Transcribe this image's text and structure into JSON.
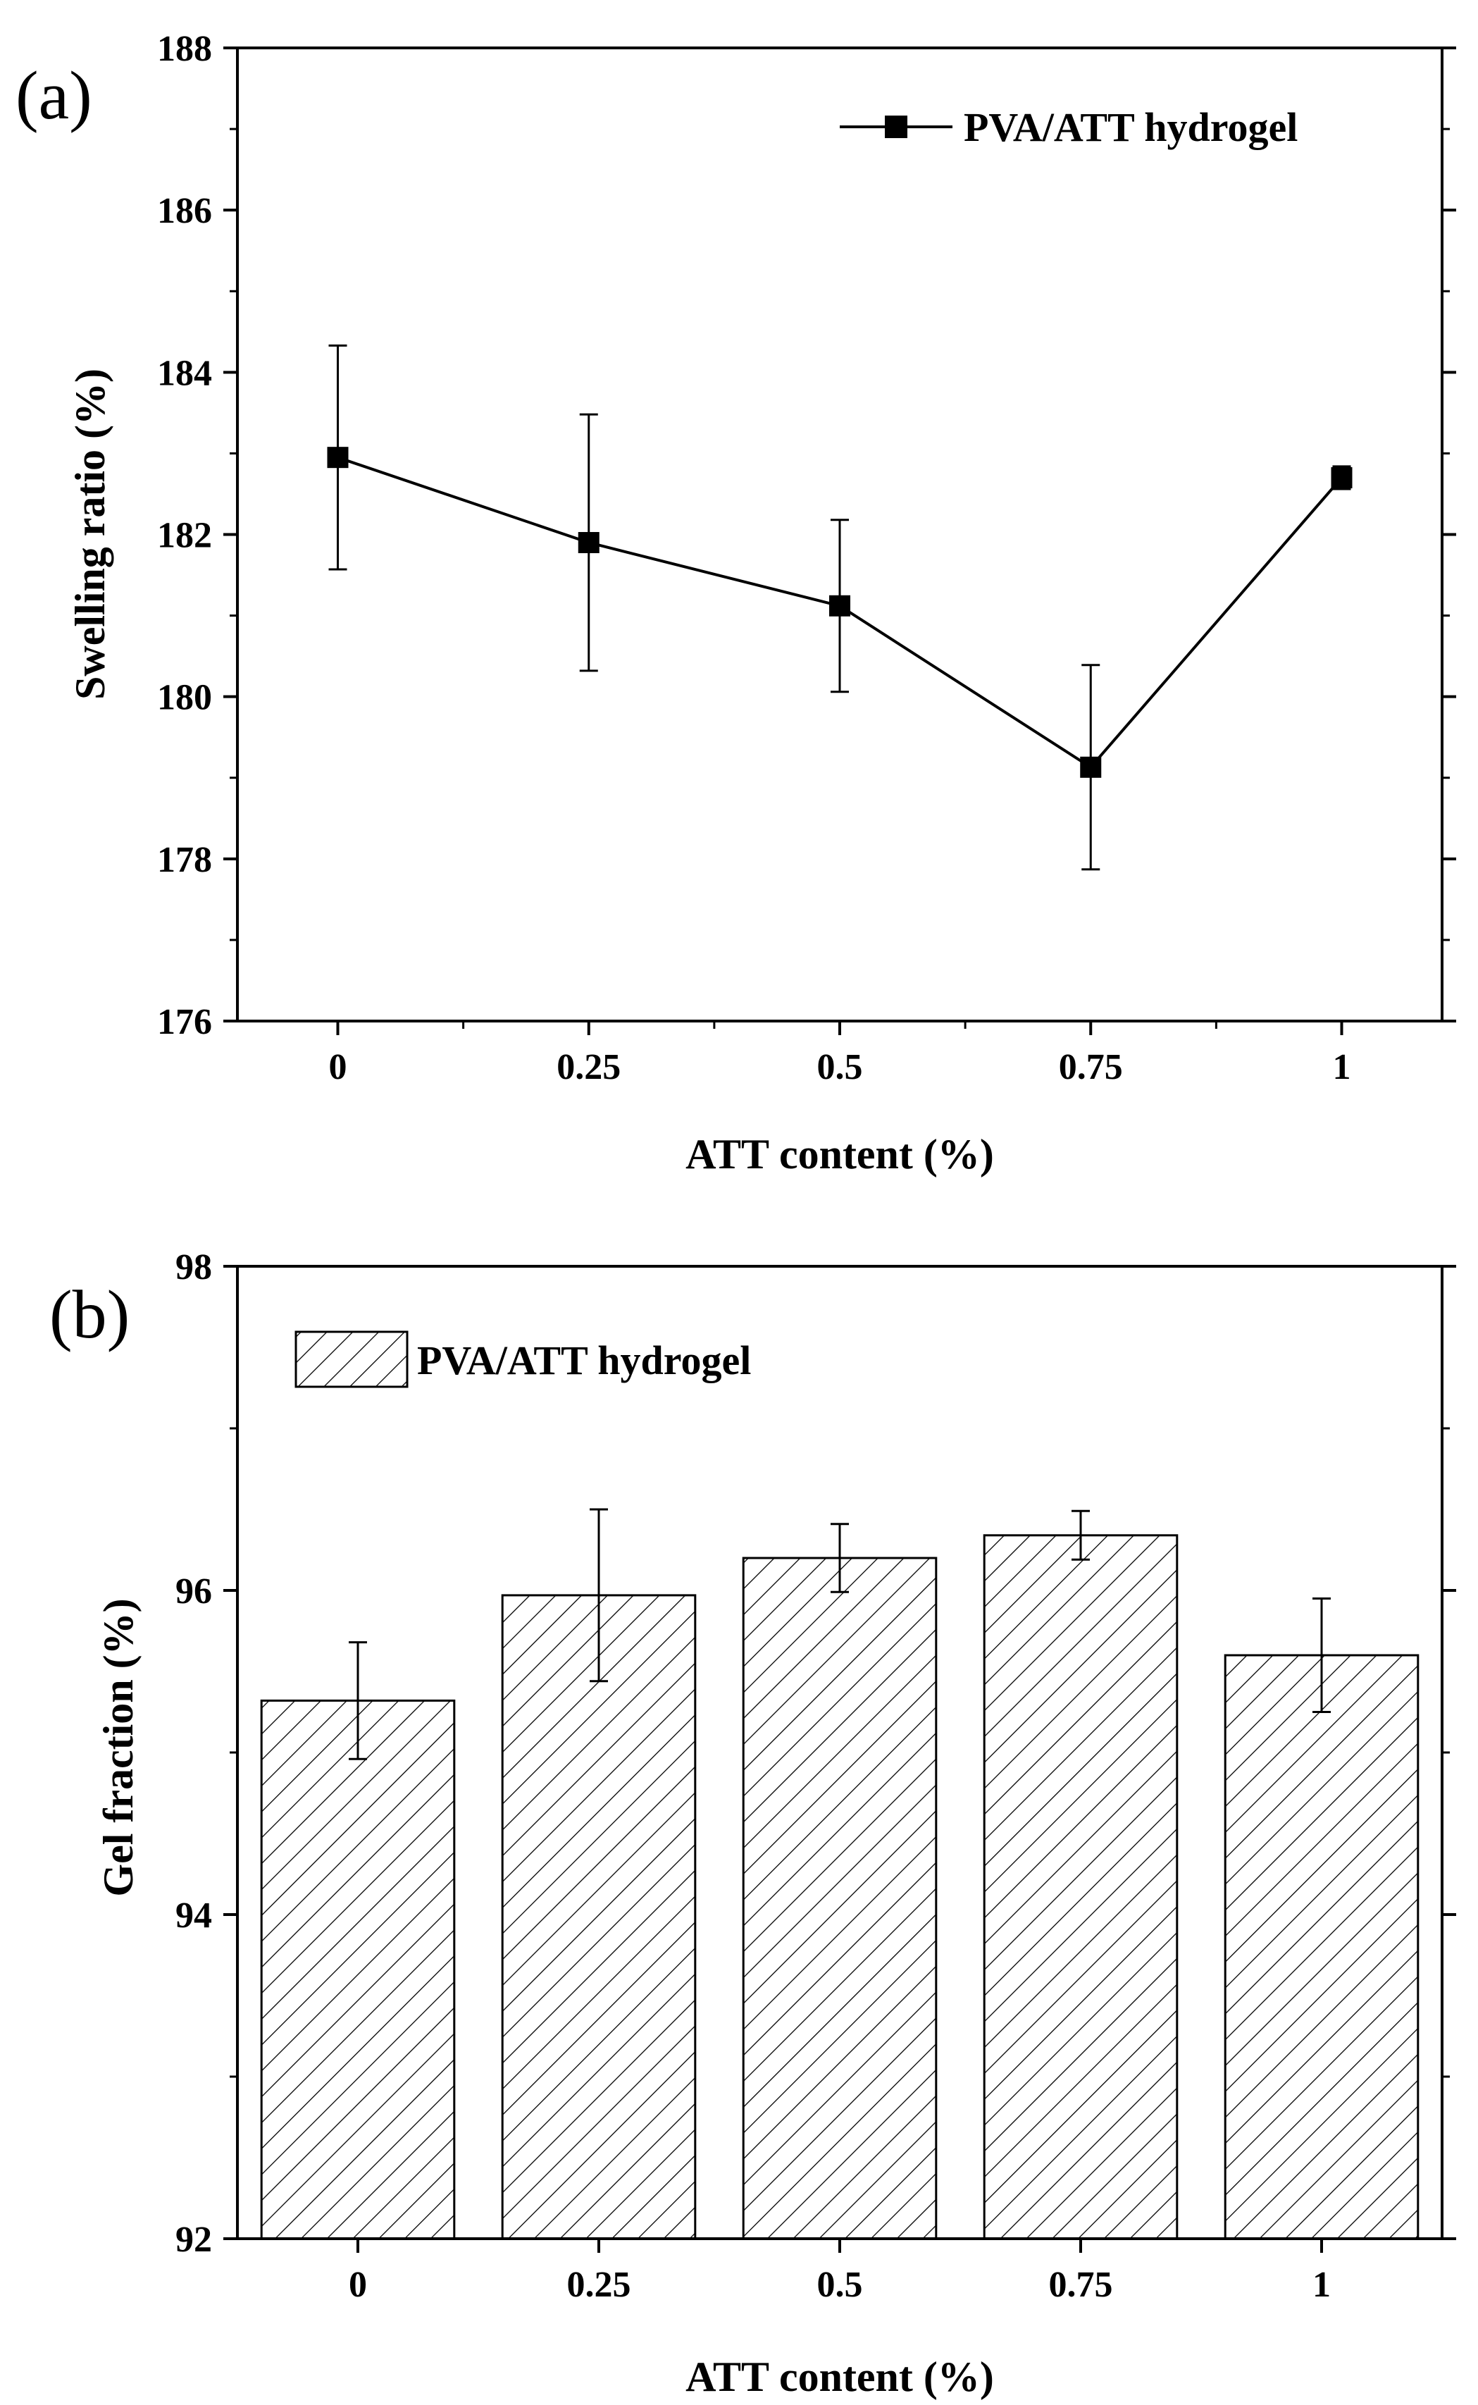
{
  "chart_data": [
    {
      "panel": "(a)",
      "type": "line",
      "title": "",
      "xlabel": "ATT content (%)",
      "ylabel": "Swelling ratio (%)",
      "categories": [
        "0",
        "0.25",
        "0.5",
        "0.75",
        "1"
      ],
      "x": [
        0,
        0.25,
        0.5,
        0.75,
        1
      ],
      "xlim": [
        -0.1,
        1.1
      ],
      "ylim": [
        176,
        188
      ],
      "yticks": [
        176,
        178,
        180,
        182,
        184,
        186,
        188
      ],
      "yticklabels": [
        "176",
        "178",
        "180",
        "182",
        "184",
        "186",
        "188"
      ],
      "series": [
        {
          "name": "PVA/ATT hydrogel",
          "values": [
            182.95,
            181.9,
            181.12,
            179.13,
            182.7
          ],
          "error": [
            1.38,
            1.58,
            1.06,
            1.26,
            0.14
          ]
        }
      ],
      "legend": "top-right",
      "grid": false
    },
    {
      "panel": "(b)",
      "type": "bar",
      "title": "",
      "xlabel": "ATT content (%)",
      "ylabel": "Gel fraction (%)",
      "categories": [
        "0",
        "0.25",
        "0.5",
        "0.75",
        "1"
      ],
      "ylim": [
        92,
        98
      ],
      "yticks": [
        92,
        94,
        96,
        98
      ],
      "yticklabels": [
        "92",
        "94",
        "96",
        "98"
      ],
      "series": [
        {
          "name": "PVA/ATT hydrogel",
          "values": [
            95.32,
            95.97,
            96.2,
            96.34,
            95.6
          ],
          "error": [
            0.36,
            0.53,
            0.21,
            0.15,
            0.35
          ]
        }
      ],
      "legend": "top-left",
      "grid": false
    }
  ]
}
